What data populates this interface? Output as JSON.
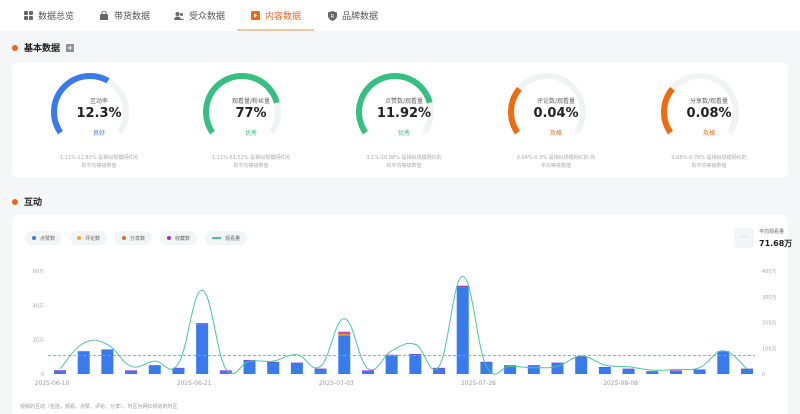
{
  "tabs": [
    {
      "label": "数据总览",
      "icon": "grid-icon",
      "active": false
    },
    {
      "label": "带货数据",
      "icon": "bag-icon",
      "active": false
    },
    {
      "label": "受众数据",
      "icon": "users-icon",
      "active": false
    },
    {
      "label": "内容数据",
      "icon": "content-icon",
      "active": true
    },
    {
      "label": "品牌数据",
      "icon": "shield-icon",
      "active": false
    }
  ],
  "basic": {
    "title": "基本数据",
    "gauges": [
      {
        "label": "互动率",
        "value": "12.3%",
        "level": "良好",
        "color": "#3a7bec",
        "percent": 0.62,
        "note1": "1.11%-12.83% 是相似规模网红的",
        "note2": "的平均等级数值"
      },
      {
        "label": "观看量/粉丝量",
        "value": "77%",
        "level": "优秀",
        "color": "#35c081",
        "percent": 0.8,
        "note1": "1.11%-61.52% 是相似规模网红的",
        "note2": "的平均等级数值"
      },
      {
        "label": "点赞数/观看量",
        "value": "11.92%",
        "level": "优秀",
        "color": "#35c081",
        "percent": 0.8,
        "note1": "3.1%-10.88% 是相似规模网红的",
        "note2": "的平均等级数值"
      },
      {
        "label": "评论数/观看量",
        "value": "0.04%",
        "level": "及格",
        "color": "#f06a10",
        "percent": 0.3,
        "note1": "0.04%-0.3% 是相似规模网红的 的",
        "note2": "平均等级数值"
      },
      {
        "label": "分享数/观看量",
        "value": "0.08%",
        "level": "及格",
        "color": "#f06a10",
        "percent": 0.3,
        "note1": "0.08%-0.78% 是相似规模网红的",
        "note2": "的平均等级数值"
      }
    ]
  },
  "interaction": {
    "title": "互动",
    "legend": [
      {
        "label": "点赞数",
        "color": "#3a7bec",
        "type": "dot"
      },
      {
        "label": "评论数",
        "color": "#f5a623",
        "type": "dot"
      },
      {
        "label": "分享数",
        "color": "#e8691b",
        "type": "dot"
      },
      {
        "label": "收藏数",
        "color": "#9b30c9",
        "type": "dot"
      },
      {
        "label": "观看量",
        "color": "#4cc59a",
        "type": "line"
      }
    ],
    "avg_icon": "···",
    "avg_title": "平均观看量",
    "avg_value": "71.68万",
    "footnote": "视频的互动（包括，观看、点赞、评论、分享），时区为网红频道的时区"
  },
  "chart_data": {
    "type": "bar",
    "title": "互动",
    "x_tick_labels": [
      "2025-06-10",
      "2025-06-21",
      "2025-07-03",
      "2025-07-26",
      "2025-08-08"
    ],
    "left_axis": {
      "ticks": [
        "0",
        "20万",
        "40万",
        "60万"
      ],
      "ylim": [
        0,
        60
      ],
      "unit": "万"
    },
    "right_axis": {
      "ticks": [
        "0",
        "100万",
        "200万",
        "300万",
        "400万"
      ],
      "ylim": [
        0,
        400
      ],
      "unit": "万"
    },
    "series": [
      {
        "name": "点赞数",
        "axis": "left",
        "type": "bar",
        "values": [
          2,
          13,
          14,
          2,
          5,
          3.5,
          29,
          2,
          8,
          7,
          6.5,
          3,
          22.5,
          2,
          11,
          11.5,
          3.5,
          50.5,
          7,
          5,
          5,
          6.5,
          10,
          4,
          3,
          1.5,
          2,
          2.5,
          13,
          3
        ]
      },
      {
        "name": "评论数",
        "axis": "left",
        "type": "bar",
        "values": [
          0,
          0,
          0,
          0,
          0,
          0,
          0,
          0,
          0,
          0,
          0,
          0,
          0.5,
          0,
          0,
          0,
          0,
          0,
          0,
          0,
          0,
          0,
          0,
          0,
          0,
          0,
          0,
          0,
          0,
          0
        ]
      },
      {
        "name": "分享数",
        "axis": "left",
        "type": "bar",
        "values": [
          0,
          0,
          0,
          0,
          0,
          0,
          0,
          0,
          0,
          0,
          0,
          0,
          1,
          0,
          0,
          0,
          0,
          0,
          0,
          0,
          0,
          0,
          0,
          0,
          0,
          0,
          0,
          0,
          0,
          0
        ]
      },
      {
        "name": "收藏数",
        "axis": "left",
        "type": "bar",
        "values": [
          0.2,
          0.3,
          0.3,
          0.1,
          0.1,
          0.1,
          0.6,
          0.1,
          0.2,
          0.1,
          0.1,
          0.1,
          0.6,
          0.1,
          0.2,
          0.2,
          0.1,
          0.9,
          0.1,
          0.1,
          0.1,
          0.1,
          0.2,
          0.1,
          0.1,
          0.1,
          0.1,
          0.1,
          0.3,
          0.1
        ]
      },
      {
        "name": "观看量",
        "axis": "right",
        "type": "line",
        "values": [
          20,
          120,
          115,
          30,
          50,
          40,
          325,
          20,
          50,
          50,
          75,
          30,
          215,
          20,
          90,
          115,
          30,
          380,
          30,
          30,
          25,
          30,
          70,
          35,
          28,
          15,
          18,
          25,
          90,
          20
        ]
      }
    ],
    "average_line": {
      "name": "平均观看量",
      "value": 71.68,
      "axis": "right"
    },
    "legend_position": "top-left",
    "grid": false
  }
}
